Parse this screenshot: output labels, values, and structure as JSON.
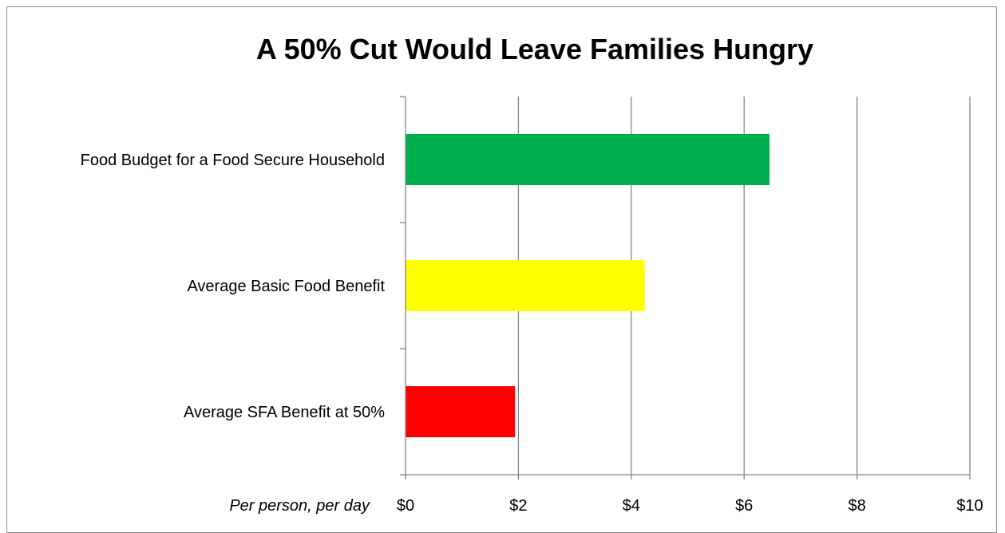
{
  "chart_data": {
    "type": "bar",
    "orientation": "horizontal",
    "title": "A 50% Cut Would Leave Families Hungry",
    "xlabel": "Per person, per day",
    "ylabel": "",
    "categories": [
      "Food Budget for a Food Secure Household",
      "Average Basic Food Benefit",
      "Average SFA Benefit at 50%"
    ],
    "values": [
      6.45,
      4.24,
      1.94
    ],
    "bar_colors": [
      "#00b050",
      "#ffff00",
      "#ff0000"
    ],
    "xlim": [
      0,
      10
    ],
    "x_ticks": [
      0,
      2,
      4,
      6,
      8,
      10
    ],
    "x_tick_labels": [
      "$0",
      "$2",
      "$4",
      "$6",
      "$8",
      "$10"
    ],
    "grid": "vertical",
    "legend": "none"
  }
}
